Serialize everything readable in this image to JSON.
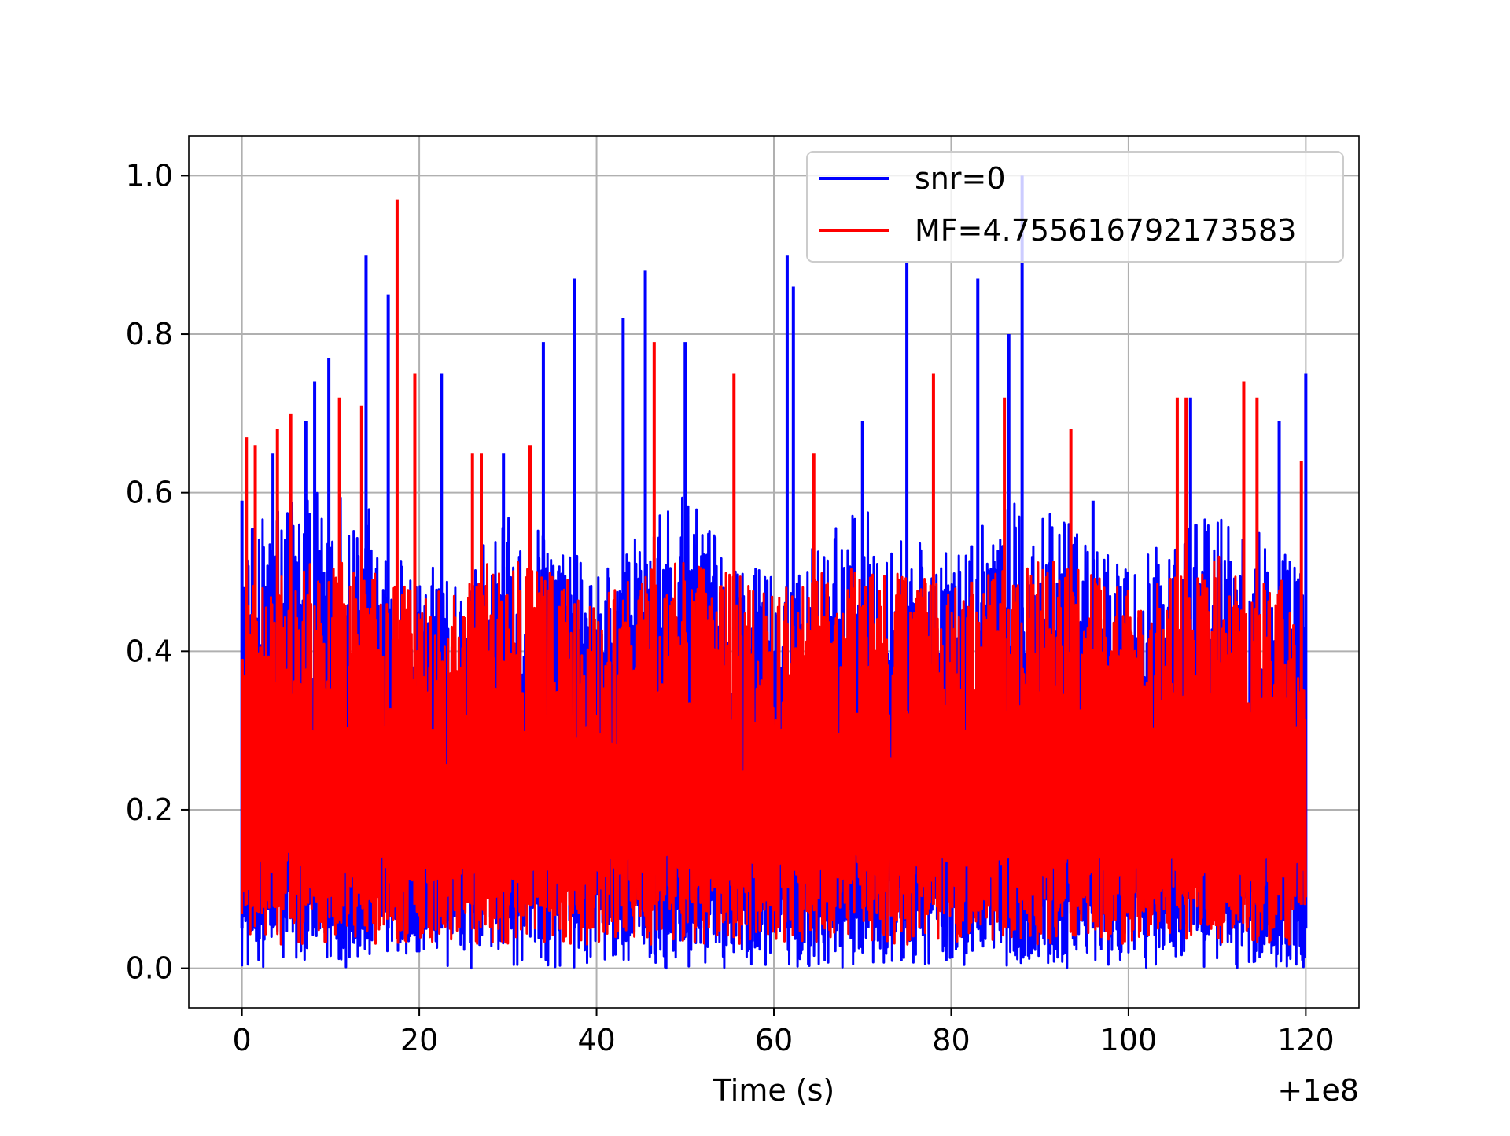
{
  "chart_data": {
    "type": "line",
    "title": "",
    "xlabel": "Time (s)",
    "ylabel": "",
    "x_offset_label": "+1e8",
    "xlim": [
      -6,
      126
    ],
    "ylim": [
      -0.05,
      1.05
    ],
    "x_ticks": [
      0,
      20,
      40,
      60,
      80,
      100,
      120
    ],
    "x_tick_labels": [
      "0",
      "20",
      "40",
      "60",
      "80",
      "100",
      "120"
    ],
    "y_ticks": [
      0.0,
      0.2,
      0.4,
      0.6,
      0.8,
      1.0
    ],
    "y_tick_labels": [
      "0.0",
      "0.2",
      "0.4",
      "0.6",
      "0.8",
      "1.0"
    ],
    "grid": true,
    "legend_position": "top-right",
    "series": [
      {
        "name": "snr=0",
        "color": "#0000ff",
        "x_range": [
          0,
          120
        ],
        "base_envelope": [
          0.55,
          0.6,
          0.62,
          0.58,
          0.5,
          0.52,
          0.57,
          0.55,
          0.5,
          0.55,
          0.6,
          0.52,
          0.5,
          0.55,
          0.58,
          0.55,
          0.52,
          0.6,
          0.58,
          0.55,
          0.5,
          0.55,
          0.58,
          0.55,
          0.5
        ],
        "floor": 0.0,
        "peaks": [
          {
            "x": 0.0,
            "y": 0.59
          },
          {
            "x": 3.5,
            "y": 0.65
          },
          {
            "x": 7.2,
            "y": 0.69
          },
          {
            "x": 8.2,
            "y": 0.74
          },
          {
            "x": 9.8,
            "y": 0.77
          },
          {
            "x": 14.0,
            "y": 0.9
          },
          {
            "x": 16.5,
            "y": 0.85
          },
          {
            "x": 22.5,
            "y": 0.75
          },
          {
            "x": 29.5,
            "y": 0.65
          },
          {
            "x": 34.0,
            "y": 0.79
          },
          {
            "x": 37.5,
            "y": 0.87
          },
          {
            "x": 43.0,
            "y": 0.82
          },
          {
            "x": 45.5,
            "y": 0.88
          },
          {
            "x": 50.0,
            "y": 0.79
          },
          {
            "x": 61.5,
            "y": 0.9
          },
          {
            "x": 62.2,
            "y": 0.86
          },
          {
            "x": 70.0,
            "y": 0.69
          },
          {
            "x": 75.0,
            "y": 0.89
          },
          {
            "x": 83.0,
            "y": 0.87
          },
          {
            "x": 86.5,
            "y": 0.8
          },
          {
            "x": 88.0,
            "y": 1.0
          },
          {
            "x": 96.0,
            "y": 0.59
          },
          {
            "x": 107.0,
            "y": 0.72
          },
          {
            "x": 117.0,
            "y": 0.69
          },
          {
            "x": 120.0,
            "y": 0.75
          }
        ]
      },
      {
        "name": "MF=4.755616792173583",
        "color": "#ff0000",
        "x_range": [
          0,
          120
        ],
        "base_envelope": [
          0.48,
          0.5,
          0.52,
          0.5,
          0.48,
          0.5,
          0.52,
          0.5,
          0.47,
          0.5,
          0.52,
          0.5,
          0.48,
          0.5,
          0.52,
          0.5,
          0.48,
          0.5,
          0.52,
          0.5,
          0.48,
          0.5,
          0.52,
          0.5,
          0.48
        ],
        "floor": 0.03,
        "peaks": [
          {
            "x": 0.5,
            "y": 0.67
          },
          {
            "x": 1.5,
            "y": 0.66
          },
          {
            "x": 4.0,
            "y": 0.68
          },
          {
            "x": 5.5,
            "y": 0.7
          },
          {
            "x": 11.0,
            "y": 0.72
          },
          {
            "x": 13.5,
            "y": 0.71
          },
          {
            "x": 17.5,
            "y": 0.97
          },
          {
            "x": 19.5,
            "y": 0.75
          },
          {
            "x": 26.0,
            "y": 0.65
          },
          {
            "x": 27.0,
            "y": 0.65
          },
          {
            "x": 32.5,
            "y": 0.66
          },
          {
            "x": 46.5,
            "y": 0.79
          },
          {
            "x": 55.5,
            "y": 0.75
          },
          {
            "x": 64.5,
            "y": 0.65
          },
          {
            "x": 78.0,
            "y": 0.75
          },
          {
            "x": 86.0,
            "y": 0.72
          },
          {
            "x": 93.5,
            "y": 0.68
          },
          {
            "x": 105.5,
            "y": 0.72
          },
          {
            "x": 106.5,
            "y": 0.72
          },
          {
            "x": 113.0,
            "y": 0.74
          },
          {
            "x": 114.5,
            "y": 0.72
          },
          {
            "x": 119.5,
            "y": 0.64
          }
        ]
      }
    ]
  }
}
